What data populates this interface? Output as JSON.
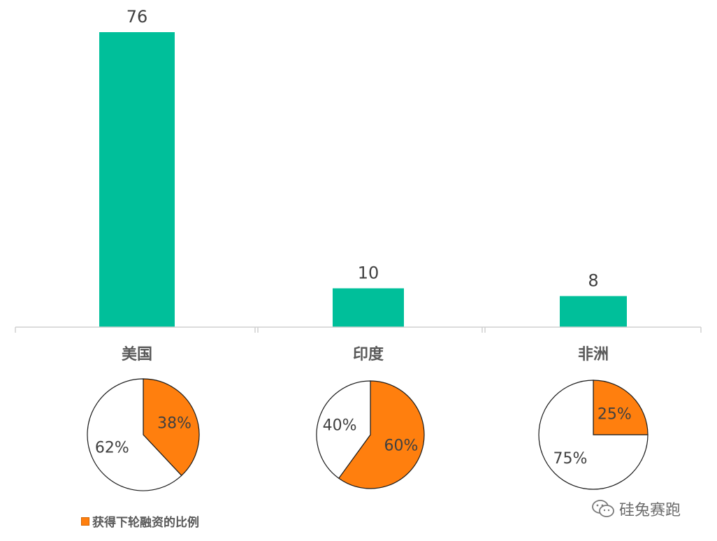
{
  "chart_data": {
    "type": "bar",
    "categories": [
      "美国",
      "印度",
      "非洲"
    ],
    "values": [
      76,
      10,
      8
    ],
    "bar_color": "#00bf9a",
    "pies": [
      {
        "category": "美国",
        "slices": [
          {
            "label": "38%",
            "value": 38,
            "color": "#ff7f0e"
          },
          {
            "label": "62%",
            "value": 62,
            "color": "#ffffff"
          }
        ]
      },
      {
        "category": "印度",
        "slices": [
          {
            "label": "60%",
            "value": 60,
            "color": "#ff7f0e"
          },
          {
            "label": "40%",
            "value": 40,
            "color": "#ffffff"
          }
        ]
      },
      {
        "category": "非洲",
        "slices": [
          {
            "label": "25%",
            "value": 25,
            "color": "#ff7f0e"
          },
          {
            "label": "75%",
            "value": 75,
            "color": "#ffffff"
          }
        ]
      }
    ],
    "legend": [
      {
        "name": "获得下轮融资的比例",
        "color": "#ff7f0e"
      }
    ]
  },
  "watermark": {
    "text": "硅兔赛跑",
    "icon": "wechat-icon"
  }
}
